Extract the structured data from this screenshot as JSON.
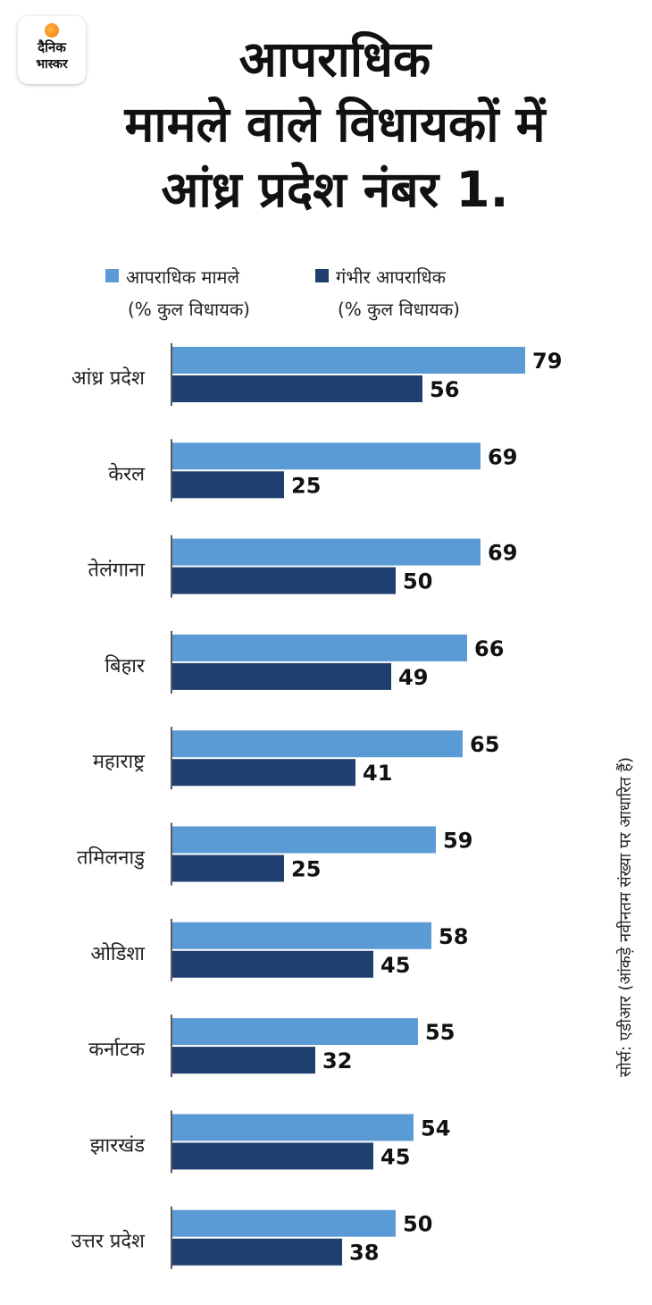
{
  "brand": {
    "line1": "दैनिक",
    "line2": "भास्कर"
  },
  "title_lines": [
    "आपराधिक",
    "मामले वाले विधायकों में",
    "आंध्र प्रदेश नंबर 1."
  ],
  "legend": [
    {
      "label": "आपराधिक मामले",
      "sub": "(% कुल विधायक)",
      "color": "#5b9bd5"
    },
    {
      "label": "गंभीर आपराधिक",
      "sub": "(% कुल विधायक)",
      "color": "#1f3f6e"
    }
  ],
  "source": "सोर्स: एडीआर (आंकड़े नवीनतम संख्या पर आधारित हैं)",
  "chart_data": {
    "type": "bar",
    "orientation": "horizontal",
    "categories": [
      "आंध्र प्रदेश",
      "केरल",
      "तेलंगाना",
      "बिहार",
      "महाराष्ट्र",
      "तमिलनाडु",
      "ओडिशा",
      "कर्नाटक",
      "झारखंड",
      "उत्तर प्रदेश"
    ],
    "series": [
      {
        "name": "आपराधिक मामले (% कुल विधायक)",
        "color": "#5b9bd5",
        "values": [
          79,
          69,
          69,
          66,
          65,
          59,
          58,
          55,
          54,
          50
        ]
      },
      {
        "name": "गंभीर आपराधिक (% कुल विधायक)",
        "color": "#1f3f6e",
        "values": [
          56,
          25,
          50,
          49,
          41,
          25,
          45,
          32,
          45,
          38
        ]
      }
    ],
    "xlim": [
      0,
      100
    ],
    "grid": false
  }
}
